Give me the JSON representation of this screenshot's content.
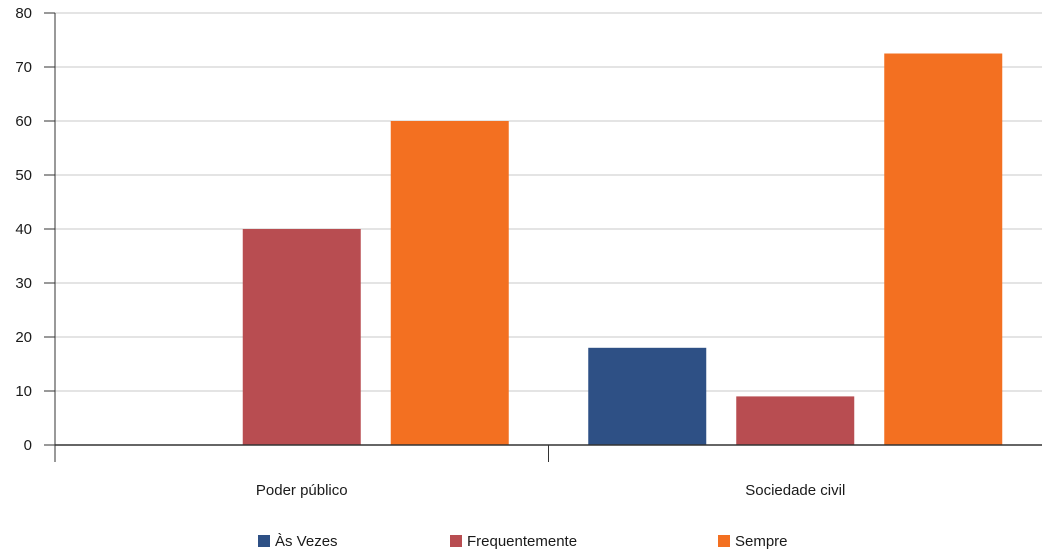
{
  "chart_data": {
    "type": "bar",
    "categories": [
      "Poder público",
      "Sociedade civil"
    ],
    "series": [
      {
        "name": "Às Vezes",
        "values": [
          0,
          18
        ],
        "color": "#2e5085"
      },
      {
        "name": "Frequentemente",
        "values": [
          40,
          9
        ],
        "color": "#b84d51"
      },
      {
        "name": "Sempre",
        "values": [
          60,
          72.5
        ],
        "color": "#f37021"
      }
    ],
    "ylim": [
      0,
      80
    ],
    "yticks": [
      0,
      10,
      20,
      30,
      40,
      50,
      60,
      70,
      80
    ],
    "grid": true,
    "legend": "bottom-center"
  }
}
